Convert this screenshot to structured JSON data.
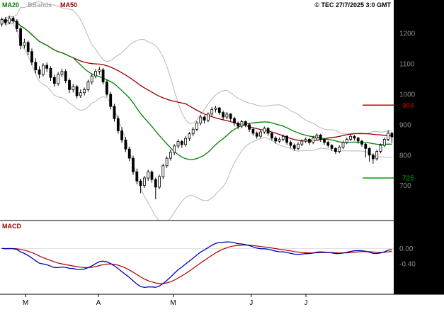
{
  "header": {
    "legend": [
      {
        "label": "MA20",
        "color": "#008000"
      },
      {
        "label": "BBands",
        "color": "#a8a8a8"
      },
      {
        "label": "MA50",
        "color": "#8b0000"
      }
    ],
    "copyright": "© TEC 27/7/2025 3:0 GMT"
  },
  "macd_label": "MACD",
  "colors": {
    "axis_bg": "#000000",
    "axis_text": "#8c8c8c",
    "candle": "#000000",
    "ma20": "#008000",
    "ma50": "#990000",
    "bbands": "#b8b8b8",
    "macd_line": "#0000bb",
    "macd_signal": "#aa0000",
    "level_resistance": "#cc0000",
    "level_support": "#00a000",
    "month_text": "#000000"
  },
  "price_axis": {
    "ticks": [
      1200,
      1100,
      1000,
      900,
      800,
      700
    ]
  },
  "macd_axis": {
    "ticks": [
      {
        "label": "0.00",
        "value": 0
      },
      {
        "label": "-0.40",
        "value": -0.4
      }
    ]
  },
  "levels": [
    {
      "label": "964",
      "value": 964,
      "type": "resistance"
    },
    {
      "label": "725",
      "value": 725,
      "type": "support"
    }
  ],
  "x_axis": {
    "labels": [
      "M",
      "A",
      "M",
      "J",
      "J"
    ],
    "positions": [
      0.065,
      0.25,
      0.44,
      0.638,
      0.777
    ]
  },
  "chart_data": [
    {
      "type": "candlestick",
      "panel": "price",
      "ylim": [
        590,
        1300
      ],
      "overlays": [
        "MA20 (simple moving average, 20)",
        "MA50 (simple moving average, 50)",
        "Bollinger Bands (MA20 ± 2 std dev)"
      ],
      "levels": [
        964,
        725
      ],
      "ohlc": [
        [
          1230,
          1252,
          1222,
          1245
        ],
        [
          1245,
          1254,
          1226,
          1235
        ],
        [
          1235,
          1258,
          1230,
          1250
        ],
        [
          1250,
          1256,
          1232,
          1240
        ],
        [
          1240,
          1246,
          1205,
          1215
        ],
        [
          1215,
          1220,
          1148,
          1160
        ],
        [
          1160,
          1182,
          1150,
          1170
        ],
        [
          1170,
          1176,
          1128,
          1140
        ],
        [
          1140,
          1150,
          1095,
          1105
        ],
        [
          1105,
          1118,
          1068,
          1080
        ],
        [
          1080,
          1092,
          1052,
          1065
        ],
        [
          1065,
          1102,
          1058,
          1095
        ],
        [
          1095,
          1104,
          1074,
          1085
        ],
        [
          1085,
          1092,
          1044,
          1055
        ],
        [
          1055,
          1064,
          1024,
          1035
        ],
        [
          1035,
          1072,
          1028,
          1065
        ],
        [
          1065,
          1084,
          1056,
          1075
        ],
        [
          1075,
          1082,
          1036,
          1045
        ],
        [
          1045,
          1052,
          1004,
          1015
        ],
        [
          1015,
          1034,
          1006,
          1025
        ],
        [
          1025,
          1030,
          986,
          995
        ],
        [
          995,
          1016,
          988,
          1005
        ],
        [
          1005,
          1022,
          996,
          1015
        ],
        [
          1015,
          1048,
          1008,
          1040
        ],
        [
          1040,
          1066,
          1032,
          1060
        ],
        [
          1060,
          1082,
          1052,
          1075
        ],
        [
          1075,
          1090,
          1064,
          1080
        ],
        [
          1080,
          1086,
          1032,
          1040
        ],
        [
          1040,
          1048,
          992,
          1000
        ],
        [
          1000,
          1008,
          950,
          960
        ],
        [
          960,
          968,
          910,
          920
        ],
        [
          920,
          930,
          870,
          880
        ],
        [
          880,
          892,
          840,
          850
        ],
        [
          850,
          860,
          810,
          820
        ],
        [
          820,
          828,
          780,
          790
        ],
        [
          790,
          798,
          735,
          745
        ],
        [
          745,
          756,
          704,
          715
        ],
        [
          715,
          722,
          675,
          700
        ],
        [
          700,
          732,
          692,
          725
        ],
        [
          725,
          752,
          716,
          745
        ],
        [
          745,
          750,
          710,
          720
        ],
        [
          720,
          726,
          655,
          695
        ],
        [
          695,
          736,
          688,
          730
        ],
        [
          730,
          772,
          722,
          765
        ],
        [
          765,
          796,
          758,
          790
        ],
        [
          790,
          818,
          782,
          810
        ],
        [
          810,
          836,
          800,
          830
        ],
        [
          830,
          852,
          822,
          845
        ],
        [
          845,
          850,
          824,
          835
        ],
        [
          835,
          862,
          828,
          855
        ],
        [
          855,
          876,
          846,
          870
        ],
        [
          870,
          892,
          862,
          885
        ],
        [
          885,
          912,
          878,
          905
        ],
        [
          905,
          932,
          898,
          925
        ],
        [
          925,
          930,
          904,
          915
        ],
        [
          915,
          940,
          908,
          935
        ],
        [
          935,
          958,
          928,
          950
        ],
        [
          950,
          962,
          940,
          955
        ],
        [
          955,
          958,
          932,
          940
        ],
        [
          940,
          946,
          916,
          925
        ],
        [
          925,
          942,
          918,
          935
        ],
        [
          935,
          938,
          912,
          920
        ],
        [
          920,
          926,
          896,
          905
        ],
        [
          905,
          910,
          886,
          895
        ],
        [
          895,
          916,
          888,
          910
        ],
        [
          910,
          914,
          892,
          900
        ],
        [
          900,
          904,
          876,
          885
        ],
        [
          885,
          890,
          864,
          872
        ],
        [
          872,
          878,
          854,
          862
        ],
        [
          862,
          882,
          856,
          876
        ],
        [
          876,
          894,
          870,
          888
        ],
        [
          888,
          892,
          864,
          872
        ],
        [
          872,
          876,
          848,
          856
        ],
        [
          856,
          862,
          838,
          846
        ],
        [
          846,
          858,
          840,
          852
        ],
        [
          852,
          868,
          846,
          862
        ],
        [
          862,
          866,
          834,
          842
        ],
        [
          842,
          848,
          824,
          832
        ],
        [
          832,
          838,
          814,
          822
        ],
        [
          822,
          842,
          816,
          836
        ],
        [
          836,
          852,
          830,
          846
        ],
        [
          846,
          858,
          840,
          852
        ],
        [
          852,
          856,
          834,
          842
        ],
        [
          842,
          862,
          836,
          856
        ],
        [
          856,
          872,
          850,
          866
        ],
        [
          866,
          870,
          844,
          852
        ],
        [
          852,
          856,
          834,
          842
        ],
        [
          842,
          846,
          824,
          832
        ],
        [
          832,
          836,
          814,
          822
        ],
        [
          822,
          826,
          804,
          812
        ],
        [
          812,
          832,
          806,
          826
        ],
        [
          826,
          848,
          820,
          842
        ],
        [
          842,
          858,
          836,
          852
        ],
        [
          852,
          868,
          846,
          862
        ],
        [
          862,
          866,
          848,
          856
        ],
        [
          856,
          860,
          838,
          846
        ],
        [
          846,
          850,
          828,
          836
        ],
        [
          836,
          840,
          792,
          822
        ],
        [
          822,
          826,
          778,
          800
        ],
        [
          800,
          806,
          772,
          788
        ],
        [
          788,
          818,
          782,
          812
        ],
        [
          812,
          838,
          806,
          832
        ],
        [
          832,
          858,
          826,
          852
        ],
        [
          852,
          882,
          846,
          872
        ],
        [
          872,
          876,
          840,
          860
        ]
      ]
    },
    {
      "type": "line",
      "panel": "macd",
      "ylim": [
        -1.15,
        0.65
      ],
      "series": [
        {
          "name": "MACD (EMA12 - EMA26 of close/100)",
          "color": "#0000bb"
        },
        {
          "name": "Signal (EMA9 of MACD)",
          "color": "#aa0000"
        }
      ]
    }
  ]
}
